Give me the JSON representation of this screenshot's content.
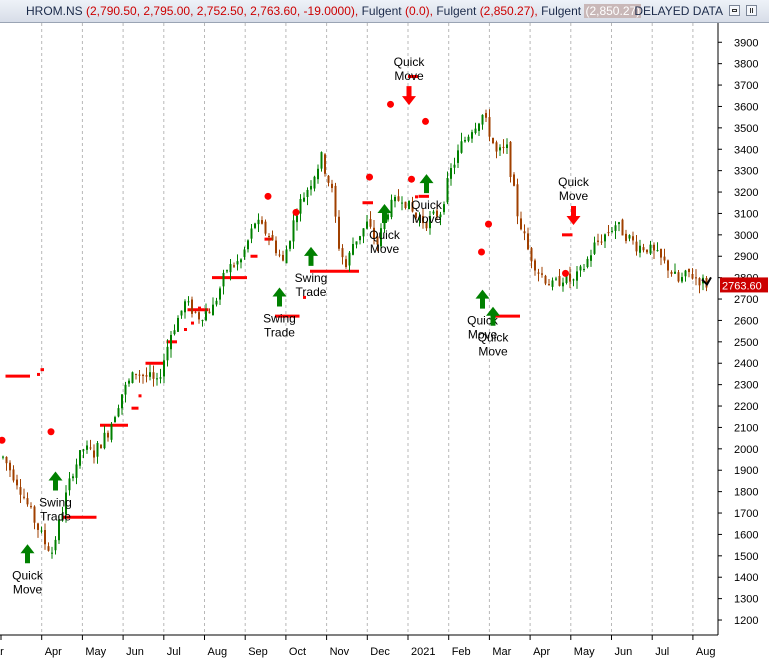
{
  "header": {
    "symbol": "HROM.NS",
    "ohlc": "(2,790.50, 2,795.00, 2,752.50, 2,763.60, -19.0000),",
    "ind1_name": "Fulgent",
    "ind1_value": "(0.0),",
    "ind2_name": "Fulgent",
    "ind2_value": "(2,850.27),",
    "ind3_name": "Fulgent",
    "ind3_value": "(2,850.27)",
    "status": "DELAYED DATA"
  },
  "colors": {
    "up": "#008000",
    "down": "#a04000",
    "signal": "#ff0000",
    "buy_arrow": "#008000",
    "sell_arrow": "#ff0000",
    "price_tag": "#cc0000"
  },
  "chart_data": {
    "type": "candlestick",
    "ylim": [
      1130,
      3990
    ],
    "y_ticks": [
      1200,
      1300,
      1400,
      1500,
      1600,
      1700,
      1800,
      1900,
      2000,
      2100,
      2200,
      2300,
      2400,
      2500,
      2600,
      2700,
      2800,
      2900,
      3000,
      3100,
      3200,
      3300,
      3400,
      3500,
      3600,
      3700,
      3800,
      3900
    ],
    "x_labels": [
      "ar",
      "Apr",
      "May",
      "Jun",
      "Jul",
      "Aug",
      "Sep",
      "Oct",
      "Nov",
      "Dec",
      "2021",
      "Feb",
      "Mar",
      "Apr",
      "May",
      "Jun",
      "Jul",
      "Aug"
    ],
    "last_price": "2763.60",
    "price_anchors": [
      [
        0,
        1960
      ],
      [
        4,
        1850
      ],
      [
        8,
        1700
      ],
      [
        12,
        1560
      ],
      [
        14,
        1520
      ],
      [
        16,
        1650
      ],
      [
        18,
        1780
      ],
      [
        20,
        1900
      ],
      [
        23,
        2000
      ],
      [
        26,
        1980
      ],
      [
        30,
        2080
      ],
      [
        34,
        2260
      ],
      [
        38,
        2360
      ],
      [
        42,
        2330
      ],
      [
        44,
        2300
      ],
      [
        48,
        2540
      ],
      [
        52,
        2680
      ],
      [
        56,
        2620
      ],
      [
        60,
        2660
      ],
      [
        64,
        2840
      ],
      [
        68,
        2880
      ],
      [
        72,
        3060
      ],
      [
        76,
        3000
      ],
      [
        80,
        2870
      ],
      [
        84,
        3120
      ],
      [
        88,
        3250
      ],
      [
        91,
        3360
      ],
      [
        94,
        3200
      ],
      [
        96,
        2950
      ],
      [
        98,
        2850
      ],
      [
        100,
        2960
      ],
      [
        104,
        3050
      ],
      [
        107,
        2960
      ],
      [
        110,
        3120
      ],
      [
        114,
        3180
      ],
      [
        118,
        3080
      ],
      [
        121,
        3060
      ],
      [
        125,
        3110
      ],
      [
        128,
        3300
      ],
      [
        131,
        3420
      ],
      [
        134,
        3500
      ],
      [
        137,
        3560
      ],
      [
        139,
        3480
      ],
      [
        141,
        3380
      ],
      [
        144,
        3400
      ],
      [
        147,
        3100
      ],
      [
        150,
        2930
      ],
      [
        153,
        2830
      ],
      [
        157,
        2760
      ],
      [
        160,
        2800
      ],
      [
        163,
        2780
      ],
      [
        166,
        2850
      ],
      [
        169,
        2950
      ],
      [
        172,
        3000
      ],
      [
        175,
        3050
      ],
      [
        178,
        3000
      ],
      [
        181,
        2950
      ],
      [
        184,
        2940
      ],
      [
        187,
        2900
      ],
      [
        190,
        2850
      ],
      [
        193,
        2780
      ],
      [
        196,
        2820
      ],
      [
        199,
        2790
      ],
      [
        201,
        2770
      ]
    ],
    "signal_dots": [
      [
        0,
        2040
      ],
      [
        14,
        2080
      ],
      [
        76,
        3180
      ],
      [
        84,
        3105
      ],
      [
        105,
        3270
      ],
      [
        111,
        3610
      ],
      [
        117,
        3260
      ],
      [
        121,
        3530
      ],
      [
        137,
        2920
      ],
      [
        139,
        3050
      ],
      [
        161,
        2820
      ]
    ],
    "signal_steps": [
      {
        "from": 1,
        "to": 8,
        "value": 2340
      },
      {
        "from": 11,
        "to": 12,
        "value": 2370
      },
      {
        "from": 17,
        "to": 27,
        "value": 1680
      },
      {
        "from": 28,
        "to": 36,
        "value": 2110
      },
      {
        "from": 37,
        "to": 39,
        "value": 2190
      },
      {
        "from": 41,
        "to": 46,
        "value": 2400
      },
      {
        "from": 47,
        "to": 50,
        "value": 2500
      },
      {
        "from": 53,
        "to": 59,
        "value": 2650
      },
      {
        "from": 60,
        "to": 70,
        "value": 2800
      },
      {
        "from": 71,
        "to": 73,
        "value": 2900
      },
      {
        "from": 75,
        "to": 77,
        "value": 2980
      },
      {
        "from": 78,
        "to": 85,
        "value": 2620
      },
      {
        "from": 88,
        "to": 102,
        "value": 2830
      },
      {
        "from": 103,
        "to": 106,
        "value": 3150
      },
      {
        "from": 116,
        "to": 119,
        "value": 3740
      },
      {
        "from": 119,
        "to": 122,
        "value": 3180
      },
      {
        "from": 140,
        "to": 148,
        "value": 2620
      },
      {
        "from": 160,
        "to": 163,
        "value": 3000
      }
    ],
    "annotations": [
      {
        "kind": "buy",
        "label_line1": "Quick",
        "label_line2": "Move",
        "index": 7,
        "value": 1540
      },
      {
        "kind": "buy",
        "label_line1": "Swing",
        "label_line2": "Trade",
        "index": 15,
        "value": 1880
      },
      {
        "kind": "buy",
        "label_line1": "Swing",
        "label_line2": "Trade",
        "index": 79,
        "value": 2740
      },
      {
        "kind": "buy",
        "label_line1": "Swing",
        "label_line2": "Trade",
        "index": 88,
        "value": 2930
      },
      {
        "kind": "buy",
        "label_line1": "Quick",
        "label_line2": "Move",
        "index": 109,
        "value": 3130
      },
      {
        "kind": "sell",
        "label_line1": "Quick",
        "label_line2": "Move",
        "index": 116,
        "value": 3620
      },
      {
        "kind": "buy",
        "label_line1": "Quick",
        "label_line2": "Move",
        "index": 121,
        "value": 3270
      },
      {
        "kind": "buy",
        "label_line1": "Quick",
        "label_line2": "Move",
        "index": 137,
        "value": 2730
      },
      {
        "kind": "buy",
        "label_line1": "Quick",
        "label_line2": "Move",
        "index": 140,
        "value": 2650
      },
      {
        "kind": "sell",
        "label_line1": "Quick",
        "label_line2": "Move",
        "index": 163,
        "value": 3060
      }
    ]
  }
}
